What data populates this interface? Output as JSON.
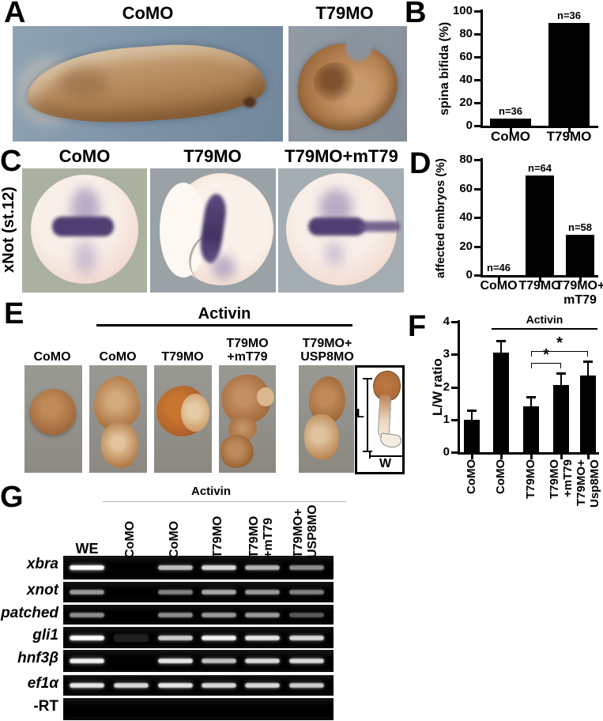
{
  "panelA": {
    "letter": "A",
    "photo_labels": [
      "CoMO",
      "T79MO"
    ]
  },
  "panelB": {
    "letter": "B"
  },
  "panelC": {
    "letter": "C",
    "side_label": "xNot (st.12)",
    "photo_labels": [
      "CoMO",
      "T79MO",
      "T79MO+mT79"
    ]
  },
  "panelD": {
    "letter": "D"
  },
  "panelE": {
    "letter": "E",
    "treatment": "Activin",
    "photo_labels": [
      "CoMO",
      "CoMO",
      "T79MO",
      "T79MO\n+mT79",
      "T79MO+\nUSP8MO"
    ],
    "schematic": {
      "length_label": "L",
      "width_label": "W"
    }
  },
  "panelF": {
    "letter": "F"
  },
  "panelG": {
    "letter": "G",
    "treatment": "Activin",
    "lane_labels": [
      "WE",
      "CoMO",
      "CoMO",
      "T79MO",
      "T79MO\n+mT79",
      "T79MO+\nUSP8MO"
    ],
    "rows": [
      {
        "gene": "xbra",
        "italic": true,
        "bands": [
          1.0,
          0,
          0.75,
          0.85,
          0.7,
          0.55
        ]
      },
      {
        "gene": "xnot",
        "italic": true,
        "bands": [
          0.6,
          0,
          0.5,
          0.65,
          0.6,
          0.5
        ]
      },
      {
        "gene": "patched",
        "italic": true,
        "bands": [
          0.55,
          0,
          0.55,
          0.6,
          0.6,
          0.35
        ]
      },
      {
        "gene": "gli1",
        "italic": true,
        "bands": [
          1.0,
          0.12,
          0.8,
          0.95,
          0.9,
          0.85
        ]
      },
      {
        "gene": "hnf3β",
        "italic": true,
        "bands": [
          0.95,
          0,
          0.9,
          0.75,
          0.85,
          0.85
        ]
      },
      {
        "gene": "ef1α",
        "italic": true,
        "bands": [
          0.9,
          0.85,
          0.9,
          0.85,
          0.85,
          0.8
        ]
      },
      {
        "gene": "-RT",
        "italic": false,
        "bands": [
          0,
          0,
          0,
          0,
          0,
          0
        ]
      }
    ]
  },
  "chart_data": [
    {
      "id": "B",
      "type": "bar",
      "title": "",
      "ylabel": "spina bifida (%)",
      "xlabel": "",
      "categories": [
        "CoMO",
        "T79MO"
      ],
      "values": [
        6,
        90
      ],
      "n_labels": [
        "n=36",
        "n=36"
      ],
      "ylim": [
        0,
        100
      ],
      "yticks": [
        0,
        20,
        40,
        60,
        80,
        100
      ],
      "grid": false,
      "bar_color": "#000000"
    },
    {
      "id": "D",
      "type": "bar",
      "title": "",
      "ylabel": "affected embryos (%)",
      "xlabel": "",
      "categories": [
        "CoMO",
        "T79MO",
        "T79MO+\nmT79"
      ],
      "values": [
        0,
        69,
        28
      ],
      "n_labels": [
        "n=46",
        "n=64",
        "n=58"
      ],
      "ylim": [
        0,
        80
      ],
      "yticks": [
        0,
        20,
        40,
        60,
        80
      ],
      "grid": false,
      "bar_color": "#000000"
    },
    {
      "id": "F",
      "type": "bar",
      "title": "",
      "ylabel": "L/W ratio",
      "xlabel": "",
      "categories": [
        "CoMO",
        "CoMO",
        "T79MO",
        "T79MO\n+mT79",
        "T79MO+\nUsp8MO"
      ],
      "values": [
        1.0,
        3.05,
        1.4,
        2.05,
        2.35
      ],
      "errors": [
        0.28,
        0.37,
        0.3,
        0.37,
        0.43
      ],
      "ylim": [
        0,
        4
      ],
      "yticks": [
        0,
        1,
        2,
        3,
        4
      ],
      "treatment_label": "Activin",
      "treatment_bars": [
        1,
        4
      ],
      "significance": [
        {
          "from": 2,
          "to": 3,
          "label": "*"
        },
        {
          "from": 2,
          "to": 4,
          "label": "*"
        }
      ],
      "grid": false,
      "bar_color": "#000000"
    }
  ]
}
